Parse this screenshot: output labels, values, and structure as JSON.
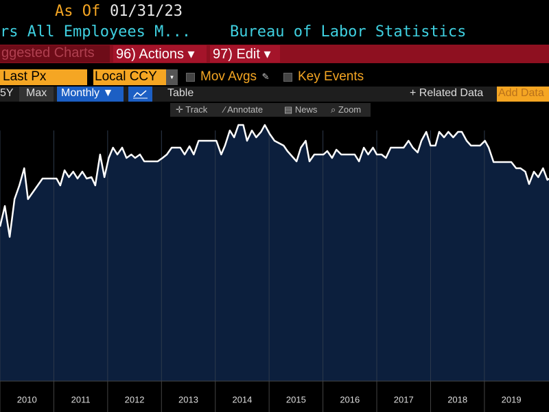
{
  "ui": {
    "as_of_label": "As Of",
    "as_of_date": "01/31/23",
    "security": "rs All Employees M...",
    "source": "Bureau of Labor Statistics",
    "suggested": "ggested Charts",
    "actions": "96) Actions ▾",
    "edit": "97) Edit ▾",
    "field": "Last Px",
    "currency": "Local CCY",
    "mov_avgs": "Mov Avgs",
    "key_events": "Key Events",
    "range_5y": "5Y",
    "range_max": "Max",
    "period": "Monthly ▼",
    "table": "Table",
    "related": "+ Related Data",
    "add_data": "Add Data",
    "track": "Track",
    "annotate": "Annotate",
    "news": "News",
    "zoom": "Zoom"
  },
  "chart_data": {
    "type": "line",
    "x": [
      2010,
      2010.09,
      2010.18,
      2010.27,
      2010.36,
      2010.45,
      2010.52,
      2010.61,
      2010.7,
      2010.79,
      2010.96,
      2011.05,
      2011.12,
      2011.2,
      2011.28,
      2011.36,
      2011.44,
      2011.53,
      2011.61,
      2011.7,
      2011.77,
      2011.86,
      2011.94,
      2012.02,
      2012.1,
      2012.18,
      2012.27,
      2012.35,
      2012.44,
      2012.51,
      2012.6,
      2012.68,
      2012.93,
      2013.02,
      2013.1,
      2013.19,
      2013.35,
      2013.43,
      2013.52,
      2013.6,
      2013.69,
      2014.02,
      2014.11,
      2014.18,
      2014.27,
      2014.35,
      2014.43,
      2014.52,
      2014.59,
      2014.68,
      2014.76,
      2014.85,
      2014.92,
      2015.01,
      2015.1,
      2015.27,
      2015.34,
      2015.43,
      2015.51,
      2015.59,
      2015.68,
      2015.75,
      2015.84,
      2016.01,
      2016.08,
      2016.17,
      2016.25,
      2016.34,
      2016.59,
      2016.67,
      2016.76,
      2016.84,
      2016.93,
      2017.0,
      2017.09,
      2017.17,
      2017.26,
      2017.5,
      2017.59,
      2017.67,
      2017.76,
      2017.83,
      2017.92,
      2018.0,
      2018.09,
      2018.16,
      2018.25,
      2018.33,
      2018.42,
      2018.51,
      2018.58,
      2018.67,
      2018.75,
      2018.92,
      2019.01,
      2019.08,
      2019.17,
      2019.5,
      2019.59,
      2019.67,
      2019.76,
      2019.83,
      2019.92,
      2020.0,
      2020.09,
      2020.17,
      2020.2
    ],
    "series": [
      {
        "color": "#ffffff",
        "values": [
          56.25,
          63.75,
          52.5,
          66.25,
          71.25,
          77.5,
          66.25,
          68.75,
          71.25,
          73.75,
          73.75,
          73.75,
          71.25,
          76.75,
          74.25,
          76.25,
          73.75,
          76.25,
          73.75,
          74.25,
          71.25,
          82.5,
          74.25,
          81.25,
          85,
          82.5,
          85,
          81.25,
          82.5,
          81.25,
          82.5,
          80,
          80,
          81.25,
          82.5,
          85,
          85,
          82.5,
          85.5,
          82.5,
          87.5,
          87.5,
          82.5,
          85.75,
          91.25,
          88.75,
          93.25,
          93.25,
          87.5,
          91.25,
          88.75,
          90.75,
          93.25,
          90,
          87.5,
          85.75,
          83.75,
          81.75,
          80,
          85,
          87.5,
          80,
          82.5,
          82.5,
          83.75,
          81.25,
          84.25,
          82.5,
          82.5,
          80,
          85,
          82.5,
          85,
          82.5,
          82.5,
          81.25,
          85,
          85,
          87.5,
          85,
          83.25,
          87.5,
          90.75,
          85.75,
          85.75,
          90.75,
          88.75,
          90.75,
          88.75,
          90.75,
          90.75,
          87.5,
          85.75,
          85.75,
          87.5,
          85,
          79.75,
          79.75,
          77.5,
          77.5,
          76.25,
          71.75,
          76.25,
          74.25,
          77.5,
          73.25,
          73.75
        ]
      }
    ],
    "area_color": "#0c1f3d",
    "xlim": [
      2010,
      2020.2
    ],
    "xticks": [
      {
        "value": 2010.5,
        "label": "2010"
      },
      {
        "value": 2011.5,
        "label": "2011"
      },
      {
        "value": 2012.5,
        "label": "2012"
      },
      {
        "value": 2013.5,
        "label": "2013"
      },
      {
        "value": 2014.5,
        "label": "2014"
      },
      {
        "value": 2015.5,
        "label": "2015"
      },
      {
        "value": 2016.5,
        "label": "2016"
      },
      {
        "value": 2017.5,
        "label": "2017"
      },
      {
        "value": 2018.5,
        "label": "2018"
      },
      {
        "value": 2019.5,
        "label": "2019"
      }
    ],
    "ylim": [
      0,
      100
    ]
  }
}
